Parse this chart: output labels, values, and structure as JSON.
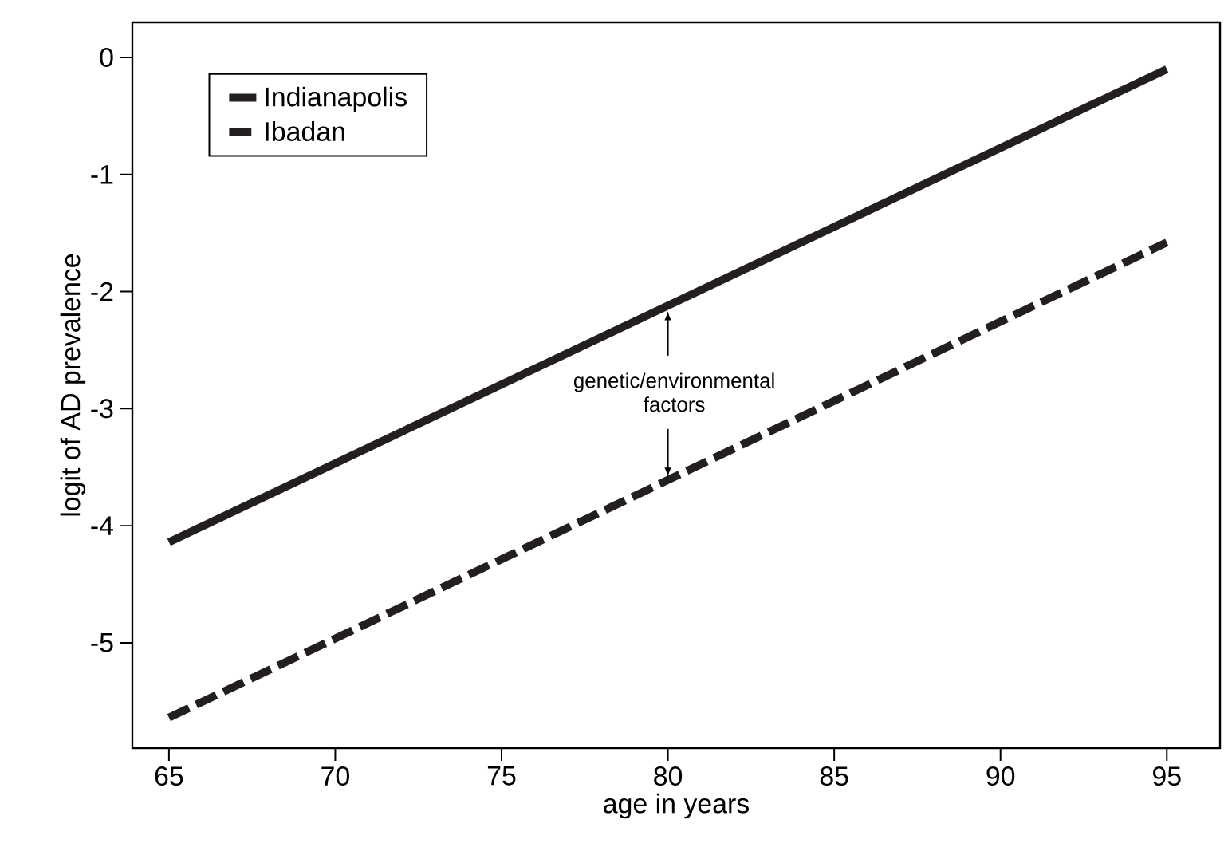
{
  "chart_data": {
    "type": "line",
    "xlabel": "age in years",
    "ylabel": "logit of AD prevalence",
    "x": [
      65,
      95
    ],
    "series": [
      {
        "name": "Indianapolis",
        "color": "#231f20",
        "values": [
          -4.14,
          -0.1
        ],
        "line_style": "solid"
      },
      {
        "name": "Ibadan",
        "color": "#231f20",
        "values": [
          -5.64,
          -1.58
        ],
        "line_style": "dashed"
      }
    ],
    "xlim": [
      63.9,
      96.6
    ],
    "ylim": [
      -5.9,
      0.3
    ],
    "xticks": [
      65,
      70,
      75,
      80,
      85,
      90,
      95
    ],
    "yticks": [
      0,
      -1,
      -2,
      -3,
      -4,
      -5
    ],
    "legend": "top left",
    "grid": false,
    "marker": "none",
    "annotations": [
      {
        "text": "genetic/environmental factors",
        "x": 80,
        "y": -3.61
      }
    ]
  }
}
